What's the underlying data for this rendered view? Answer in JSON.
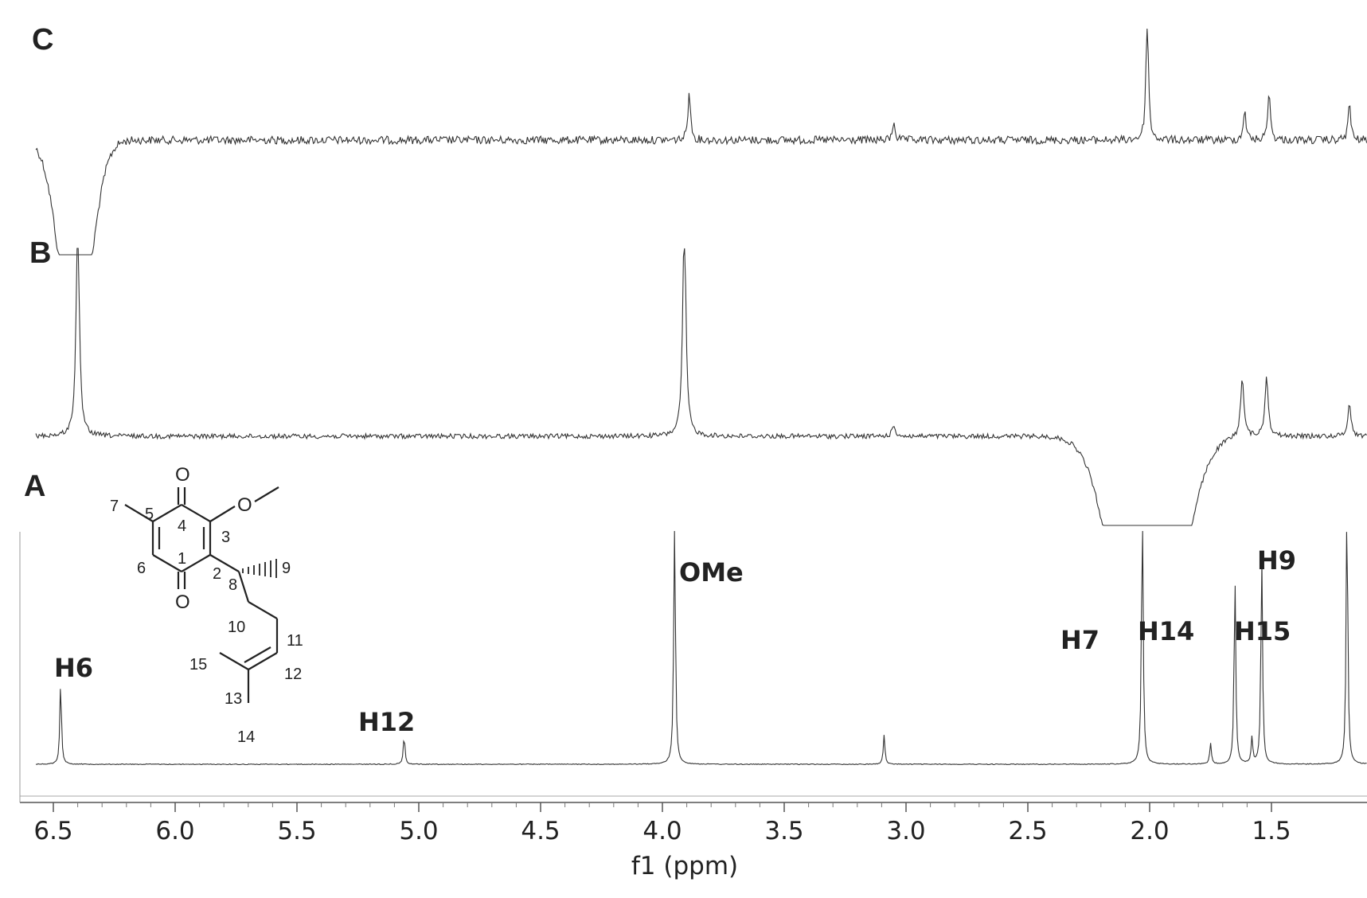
{
  "chart_data": {
    "type": "line",
    "xlabel": "f1 (ppm)",
    "xlim": [
      6.55,
      1.05
    ],
    "x_reversed": true,
    "x_ticks": [
      "6.5",
      "6.0",
      "5.5",
      "5.0",
      "4.5",
      "4.0",
      "3.5",
      "3.0",
      "2.5",
      "2.0",
      "1.5"
    ],
    "x_tick_values": [
      6.5,
      6.0,
      5.5,
      5.0,
      4.5,
      4.0,
      3.5,
      3.0,
      2.5,
      2.0,
      1.5
    ],
    "grid": false,
    "panels": [
      {
        "label": "C",
        "peaks": [
          {
            "ppm": 6.41,
            "height": -1.0,
            "note": "dispersive negative"
          },
          {
            "ppm": 3.89,
            "height": 0.4
          },
          {
            "ppm": 3.05,
            "height": 0.15
          },
          {
            "ppm": 2.01,
            "height": 1.0
          },
          {
            "ppm": 1.61,
            "height": 0.25
          },
          {
            "ppm": 1.51,
            "height": 0.4
          },
          {
            "ppm": 1.18,
            "height": 0.3
          }
        ]
      },
      {
        "label": "B",
        "peaks": [
          {
            "ppm": 6.4,
            "height": 1.0
          },
          {
            "ppm": 3.91,
            "height": 1.0
          },
          {
            "ppm": 3.05,
            "height": 0.05
          },
          {
            "ppm": 2.01,
            "height": -1.0,
            "note": "broad negative dip"
          },
          {
            "ppm": 1.62,
            "height": 0.28
          },
          {
            "ppm": 1.52,
            "height": 0.28
          },
          {
            "ppm": 1.18,
            "height": 0.15
          }
        ]
      },
      {
        "label": "A",
        "peaks": [
          {
            "ppm": 6.47,
            "height": 0.31,
            "label": "H6"
          },
          {
            "ppm": 5.06,
            "height": 0.11,
            "label": "H12"
          },
          {
            "ppm": 3.95,
            "height": 1.0,
            "label": "OMe"
          },
          {
            "ppm": 3.09,
            "height": 0.11
          },
          {
            "ppm": 2.03,
            "height": 1.0,
            "label": "H7"
          },
          {
            "ppm": 1.75,
            "height": 0.08
          },
          {
            "ppm": 1.65,
            "height": 0.71,
            "label": "H14"
          },
          {
            "ppm": 1.58,
            "height": 0.1
          },
          {
            "ppm": 1.54,
            "height": 0.79,
            "label": "H15"
          },
          {
            "ppm": 1.19,
            "height": 1.0,
            "label": "H9"
          }
        ]
      }
    ],
    "structure": {
      "oxygens": [
        "O",
        "O",
        "O"
      ],
      "atom_numbers": [
        "1",
        "2",
        "3",
        "4",
        "5",
        "6",
        "7",
        "8",
        "9",
        "10",
        "11",
        "12",
        "13",
        "14",
        "15"
      ]
    }
  }
}
